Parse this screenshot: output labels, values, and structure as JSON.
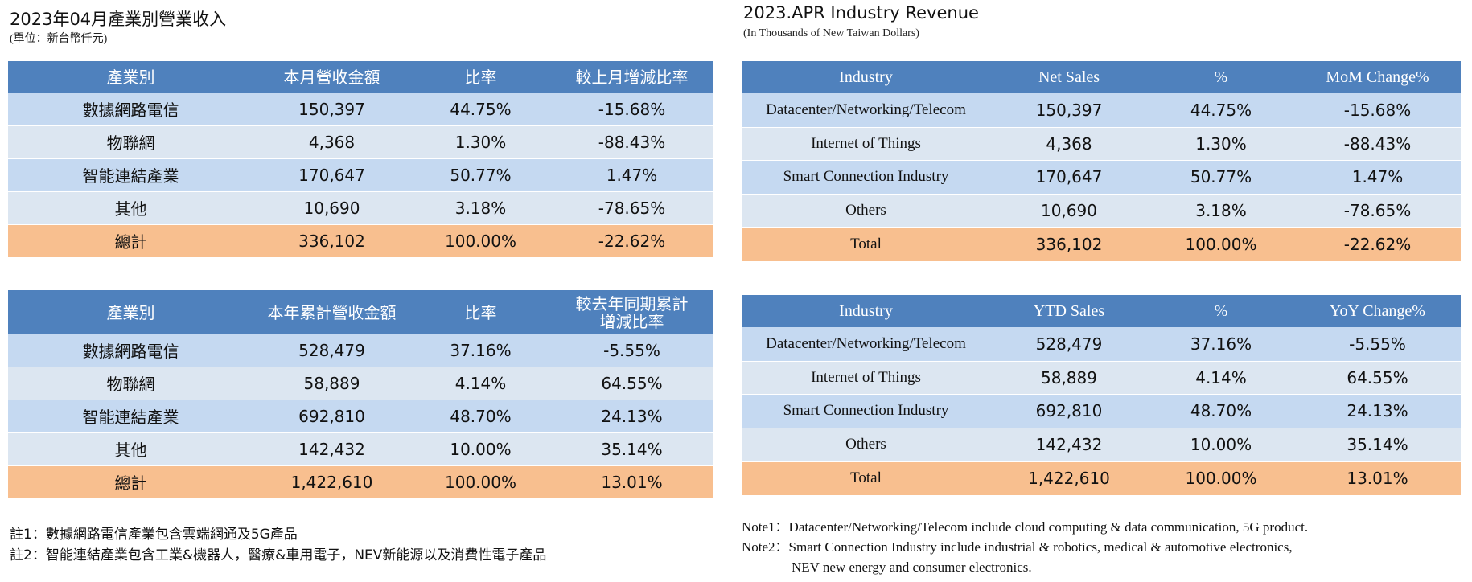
{
  "left": {
    "title": "2023年04月產業別營業收入",
    "unit": "(單位：新台幣仟元)",
    "monthly": {
      "headers": [
        "產業別",
        "本月營收金額",
        "比率",
        "較上月增減比率"
      ],
      "rows": [
        [
          "數據網路電信",
          "150,397",
          "44.75%",
          "-15.68%"
        ],
        [
          "物聯網",
          "4,368",
          "1.30%",
          "-88.43%"
        ],
        [
          "智能連結產業",
          "170,647",
          "50.77%",
          "1.47%"
        ],
        [
          "其他",
          "10,690",
          "3.18%",
          "-78.65%"
        ]
      ],
      "total": [
        "總計",
        "336,102",
        "100.00%",
        "-22.62%"
      ]
    },
    "ytd": {
      "headers": [
        "產業別",
        "本年累計營收金額",
        "比率",
        "較去年同期累計",
        "增減比率"
      ],
      "rows": [
        [
          "數據網路電信",
          "528,479",
          "37.16%",
          "-5.55%"
        ],
        [
          "物聯網",
          "58,889",
          "4.14%",
          "64.55%"
        ],
        [
          "智能連結產業",
          "692,810",
          "48.70%",
          "24.13%"
        ],
        [
          "其他",
          "142,432",
          "10.00%",
          "35.14%"
        ]
      ],
      "total": [
        "總計",
        "1,422,610",
        "100.00%",
        "13.01%"
      ]
    },
    "notes": [
      "註1：數據網路電信產業包含雲端網通及5G產品",
      "註2：智能連結產業包含工業&機器人，醫療&車用電子，NEV新能源以及消費性電子產品"
    ]
  },
  "right": {
    "title": "2023.APR Industry Revenue",
    "unit": "(In Thousands of New Taiwan Dollars)",
    "monthly": {
      "headers": [
        "Industry",
        "Net Sales",
        "%",
        "MoM Change%"
      ],
      "rows": [
        [
          "Datacenter/Networking/Telecom",
          "150,397",
          "44.75%",
          "-15.68%"
        ],
        [
          "Internet of Things",
          "4,368",
          "1.30%",
          "-88.43%"
        ],
        [
          "Smart Connection Industry",
          "170,647",
          "50.77%",
          "1.47%"
        ],
        [
          "Others",
          "10,690",
          "3.18%",
          "-78.65%"
        ]
      ],
      "total": [
        "Total",
        "336,102",
        "100.00%",
        "-22.62%"
      ]
    },
    "ytd": {
      "headers": [
        "Industry",
        "YTD Sales",
        "%",
        "YoY Change%"
      ],
      "rows": [
        [
          "Datacenter/Networking/Telecom",
          "528,479",
          "37.16%",
          "-5.55%"
        ],
        [
          "Internet of Things",
          "58,889",
          "4.14%",
          "64.55%"
        ],
        [
          "Smart Connection Industry",
          "692,810",
          "48.70%",
          "24.13%"
        ],
        [
          "Others",
          "142,432",
          "10.00%",
          "35.14%"
        ]
      ],
      "total": [
        "Total",
        "1,422,610",
        "100.00%",
        "13.01%"
      ]
    },
    "notes": [
      "Note1：Datacenter/Networking/Telecom include cloud computing & data communication, 5G product.",
      "Note2：Smart Connection Industry include industrial & robotics, medical & automotive electronics,",
      "NEV new energy and consumer electronics."
    ]
  }
}
